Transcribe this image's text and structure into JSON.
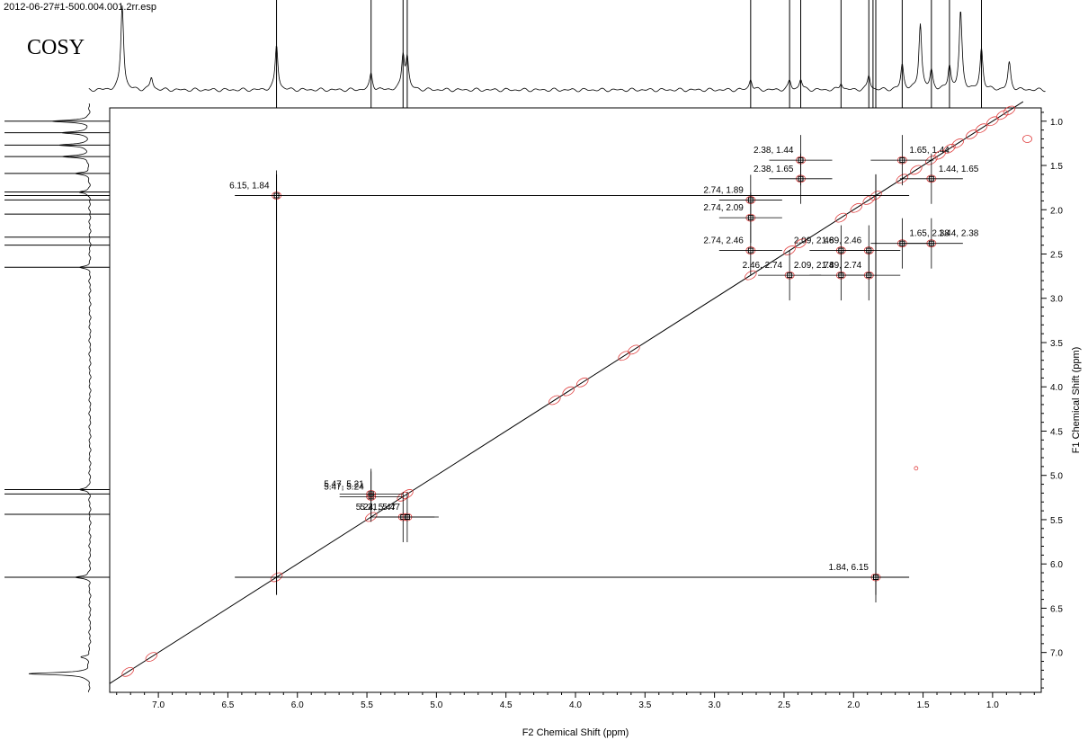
{
  "header": {
    "file_name": "2012-06-27#1-500.004.001.2rr.esp",
    "experiment": "COSY"
  },
  "chart_data": {
    "type": "scatter",
    "title": "COSY",
    "xlabel": "F2 Chemical Shift (ppm)",
    "ylabel": "F1 Chemical Shift (ppm)",
    "xlim": [
      7.35,
      0.65
    ],
    "ylim": [
      0.85,
      7.45
    ],
    "x_reversed": true,
    "y_reversed": true,
    "x_ticks": [
      7.0,
      6.5,
      6.0,
      5.5,
      5.0,
      4.5,
      4.0,
      3.5,
      3.0,
      2.5,
      2.0,
      1.5,
      1.0
    ],
    "y_ticks": [
      1.0,
      1.5,
      2.0,
      2.5,
      3.0,
      3.5,
      4.0,
      4.5,
      5.0,
      5.5,
      6.0,
      6.5,
      7.0
    ],
    "x_tick_labels": [
      "7.0",
      "6.5",
      "6.0",
      "5.5",
      "5.0",
      "4.5",
      "4.0",
      "3.5",
      "3.0",
      "2.5",
      "2.0",
      "1.5",
      "1.0"
    ],
    "y_tick_labels": [
      "1.0",
      "1.5",
      "2.0",
      "2.5",
      "3.0",
      "3.5",
      "4.0",
      "4.5",
      "5.0",
      "5.5",
      "6.0",
      "6.5",
      "7.0"
    ],
    "f2_projection_lines_ppm": [
      6.15,
      5.47,
      5.24,
      5.21,
      2.74,
      2.46,
      2.38,
      2.09,
      1.89,
      1.86,
      1.84,
      1.65,
      1.44,
      1.31,
      1.08
    ],
    "f1_projection_lines_ppm": [
      1.0,
      1.13,
      1.27,
      1.4,
      1.59,
      1.8,
      1.84,
      1.89,
      2.05,
      2.31,
      2.4,
      2.65,
      5.16,
      5.21,
      5.44,
      6.15
    ],
    "cross_peaks": [
      {
        "x": 2.38,
        "y": 1.44,
        "label": "2.38, 1.44"
      },
      {
        "x": 1.65,
        "y": 1.44,
        "label": "1.65, 1.44"
      },
      {
        "x": 2.38,
        "y": 1.65,
        "label": "2.38, 1.65"
      },
      {
        "x": 1.44,
        "y": 1.65,
        "label": "1.44, 1.65"
      },
      {
        "x": 6.15,
        "y": 1.84,
        "label": "6.15, 1.84"
      },
      {
        "x": 2.74,
        "y": 1.89,
        "label": "2.74, 1.89"
      },
      {
        "x": 2.74,
        "y": 2.09,
        "label": "2.74, 2.09"
      },
      {
        "x": 1.44,
        "y": 2.38,
        "label": "1.44, 2.38"
      },
      {
        "x": 2.09,
        "y": 2.46,
        "label": "2.09, 2.46"
      },
      {
        "x": 1.65,
        "y": 2.38,
        "label": "1.65, 2.38"
      },
      {
        "x": 2.74,
        "y": 2.46,
        "label": "2.74, 2.46"
      },
      {
        "x": 2.09,
        "y": 2.74,
        "label": "2.09, 2.74"
      },
      {
        "x": 1.89,
        "y": 2.46,
        "label": "1.89, 2.46"
      },
      {
        "x": 2.46,
        "y": 2.74,
        "label": "2.46, 2.74"
      },
      {
        "x": 1.89,
        "y": 2.74,
        "label": "1.89, 2.74"
      },
      {
        "x": 5.47,
        "y": 5.24,
        "label": "5.47, 5.24"
      },
      {
        "x": 5.47,
        "y": 5.21,
        "label": "5.47, 5.21"
      },
      {
        "x": 5.24,
        "y": 5.47,
        "label": "5.24, 5.47"
      },
      {
        "x": 5.21,
        "y": 5.47,
        "label": "5.21, 5.47"
      },
      {
        "x": 1.84,
        "y": 6.15,
        "label": "1.84, 6.15"
      }
    ],
    "contour_color": "#e04040",
    "line_color": "#000000"
  }
}
